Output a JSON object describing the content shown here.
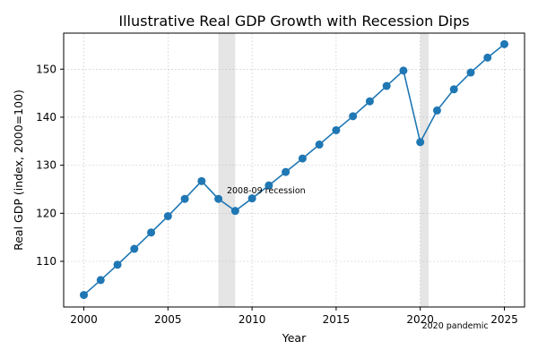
{
  "chart_data": {
    "type": "line",
    "title": "Illustrative Real GDP Growth with Recession Dips",
    "xlabel": "Year",
    "ylabel": "Real GDP (index, 2000=100)",
    "xlim": [
      1998.8,
      2026.2
    ],
    "ylim": [
      100.5,
      157.5
    ],
    "xticks": [
      2000,
      2005,
      2010,
      2015,
      2020,
      2025
    ],
    "yticks": [
      110,
      120,
      130,
      140,
      150
    ],
    "grid": true,
    "series": [
      {
        "color": "#1f77b4",
        "x": [
          2000,
          2001,
          2002,
          2003,
          2004,
          2005,
          2006,
          2007,
          2008,
          2009,
          2010,
          2011,
          2012,
          2013,
          2014,
          2015,
          2016,
          2017,
          2018,
          2019,
          2020,
          2021,
          2022,
          2023,
          2024,
          2025
        ],
        "y": [
          103.0,
          106.1,
          109.3,
          112.6,
          116.0,
          119.4,
          123.0,
          126.7,
          123.0,
          120.5,
          123.1,
          125.8,
          128.6,
          131.4,
          134.3,
          137.3,
          140.2,
          143.3,
          146.5,
          149.7,
          134.8,
          141.4,
          145.8,
          149.3,
          152.4,
          155.2
        ]
      }
    ],
    "shaded_regions": [
      {
        "x0": 2008,
        "x1": 2009,
        "color": "#bdbdbd"
      },
      {
        "x0": 2020,
        "x1": 2020.5,
        "color": "#bdbdbd"
      }
    ],
    "annotations": [
      {
        "text": "2008-09 recession",
        "x": 2008.5,
        "y": 124.2
      },
      {
        "text": "2020 pandemic",
        "x": 2020.1,
        "y": 96.0
      }
    ]
  }
}
